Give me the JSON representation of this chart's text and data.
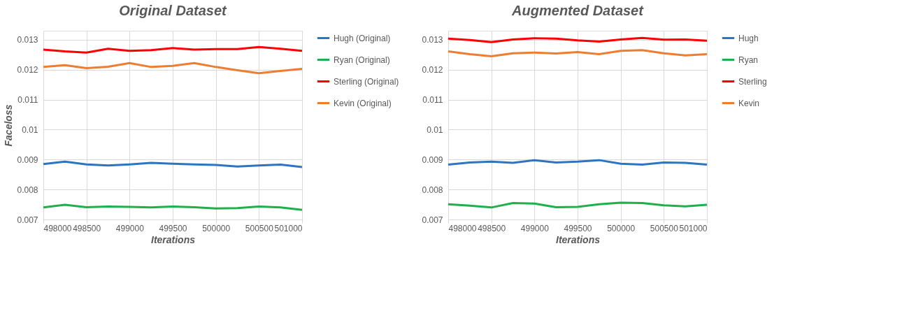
{
  "chart_data": [
    {
      "type": "line",
      "title": "Original Dataset",
      "xlabel": "Iterations",
      "ylabel": "Faceloss",
      "x": [
        498000,
        498250,
        498500,
        498750,
        499000,
        499250,
        499500,
        499750,
        500000,
        500250,
        500500,
        500750,
        501000
      ],
      "series": [
        {
          "name": "Hugh (Original)",
          "color": "#2e75c0",
          "values": [
            0.00885,
            0.00893,
            0.00884,
            0.0088,
            0.00884,
            0.00889,
            0.00886,
            0.00884,
            0.00882,
            0.00877,
            0.0088,
            0.00883,
            0.00875
          ]
        },
        {
          "name": "Ryan (Original)",
          "color": "#1fb04c",
          "values": [
            0.0074,
            0.00749,
            0.00741,
            0.00743,
            0.00742,
            0.0074,
            0.00743,
            0.00741,
            0.00737,
            0.00738,
            0.00743,
            0.0074,
            0.00732
          ]
        },
        {
          "name": "Sterling (Original)",
          "color": "#ff0000",
          "values": [
            0.01267,
            0.01261,
            0.01257,
            0.0127,
            0.01263,
            0.01265,
            0.01272,
            0.01267,
            0.01269,
            0.01269,
            0.01276,
            0.0127,
            0.01263
          ]
        },
        {
          "name": "Kevin (Original)",
          "color": "#ed7d31",
          "values": [
            0.01209,
            0.01215,
            0.01205,
            0.0121,
            0.01222,
            0.01209,
            0.01213,
            0.01222,
            0.01209,
            0.01198,
            0.01188,
            0.01196,
            0.01203
          ]
        }
      ],
      "xlim": [
        498000,
        501000
      ],
      "ylim": [
        0.007,
        0.0133
      ],
      "xticks": [
        498000,
        498500,
        499000,
        499500,
        500000,
        500500,
        501000
      ],
      "yticks": [
        0.007,
        0.008,
        0.009,
        0.01,
        0.011,
        0.012,
        0.013
      ],
      "grid": true,
      "legend": "right"
    },
    {
      "type": "line",
      "title": "Augmented Dataset",
      "xlabel": "Iterations",
      "x": [
        498000,
        498250,
        498500,
        498750,
        499000,
        499250,
        499500,
        499750,
        500000,
        500250,
        500500,
        500750,
        501000
      ],
      "series": [
        {
          "name": "Hugh",
          "color": "#2e75c0",
          "values": [
            0.00883,
            0.0089,
            0.00893,
            0.00889,
            0.00898,
            0.0089,
            0.00893,
            0.00898,
            0.00886,
            0.00883,
            0.0089,
            0.00889,
            0.00883
          ]
        },
        {
          "name": "Ryan",
          "color": "#1fb04c",
          "values": [
            0.00751,
            0.00746,
            0.0074,
            0.00755,
            0.00753,
            0.00741,
            0.00742,
            0.00751,
            0.00756,
            0.00755,
            0.00747,
            0.00744,
            0.00749
          ]
        },
        {
          "name": "Sterling",
          "color": "#ff0000",
          "values": [
            0.01304,
            0.01299,
            0.01292,
            0.01301,
            0.01305,
            0.01304,
            0.01298,
            0.01294,
            0.01301,
            0.01306,
            0.013,
            0.01301,
            0.01297
          ]
        },
        {
          "name": "Kevin",
          "color": "#ed7d31",
          "values": [
            0.01261,
            0.01252,
            0.01245,
            0.01255,
            0.01257,
            0.01254,
            0.01259,
            0.01252,
            0.01263,
            0.01265,
            0.01255,
            0.01248,
            0.01252
          ]
        }
      ],
      "xlim": [
        498000,
        501000
      ],
      "ylim": [
        0.007,
        0.0133
      ],
      "xticks": [
        498000,
        498500,
        499000,
        499500,
        500000,
        500500,
        501000
      ],
      "yticks": [
        0.007,
        0.008,
        0.009,
        0.01,
        0.011,
        0.012,
        0.013
      ],
      "grid": true,
      "legend": "right"
    }
  ]
}
